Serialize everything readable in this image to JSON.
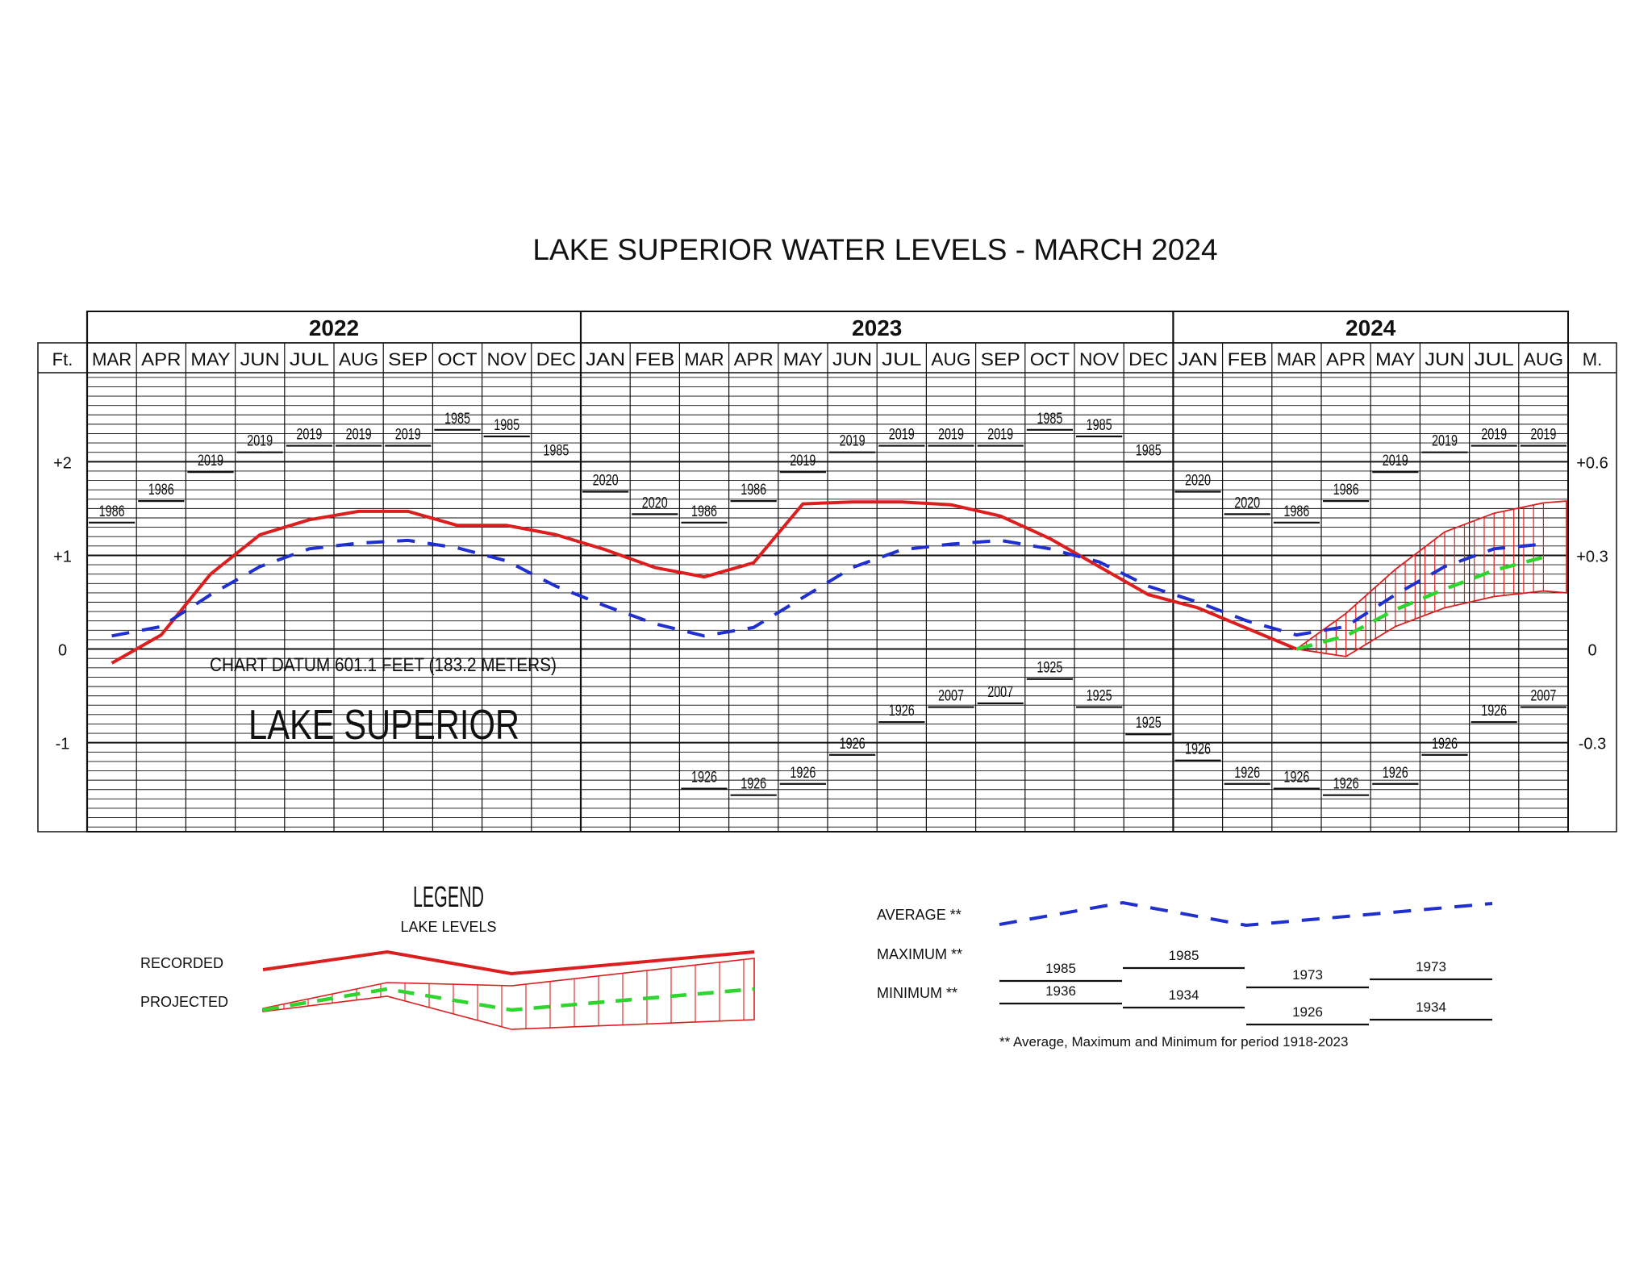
{
  "title": "LAKE SUPERIOR WATER LEVELS - MARCH 2024",
  "colors": {
    "recorded": "#dd1e1e",
    "average": "#1f2fd0",
    "projected": "#2fd52f",
    "projected_band": "#dd1e1e",
    "grid": "#111111"
  },
  "chart_data": {
    "type": "line",
    "title": "LAKE SUPERIOR WATER LEVELS - MARCH 2024",
    "left_axis_unit": "Ft.",
    "right_axis_unit": "M.",
    "y_ticks_ft": [
      {
        "value": 2,
        "label": "+2"
      },
      {
        "value": 1,
        "label": "+1"
      },
      {
        "value": 0,
        "label": "0"
      },
      {
        "value": -1,
        "label": "-1"
      }
    ],
    "y_ticks_m": [
      {
        "value": 2,
        "label": "+0.6"
      },
      {
        "value": 1,
        "label": "+0.3"
      },
      {
        "value": 0,
        "label": "0"
      },
      {
        "value": -1,
        "label": "-0.3"
      }
    ],
    "ylim": [
      -1.95,
      2.95
    ],
    "grid": true,
    "years": [
      {
        "label": "2022",
        "months": 10
      },
      {
        "label": "2023",
        "months": 12
      },
      {
        "label": "2024",
        "months": 8
      }
    ],
    "categories": [
      "MAR",
      "APR",
      "MAY",
      "JUN",
      "JUL",
      "AUG",
      "SEP",
      "OCT",
      "NOV",
      "DEC",
      "JAN",
      "FEB",
      "MAR",
      "APR",
      "MAY",
      "JUN",
      "JUL",
      "AUG",
      "SEP",
      "OCT",
      "NOV",
      "DEC",
      "JAN",
      "FEB",
      "MAR",
      "APR",
      "MAY",
      "JUN",
      "JUL",
      "AUG"
    ],
    "series": [
      {
        "name": "RECORDED",
        "style": "solid",
        "values": [
          -0.15,
          0.15,
          0.8,
          1.22,
          1.38,
          1.47,
          1.47,
          1.32,
          1.32,
          1.22,
          1.06,
          0.87,
          0.77,
          0.92,
          1.55,
          1.57,
          1.57,
          1.54,
          1.42,
          1.18,
          0.88,
          0.58,
          0.44,
          0.22,
          0.0,
          null,
          null,
          null,
          null,
          null
        ]
      },
      {
        "name": "AVERAGE",
        "style": "dashed",
        "values": [
          0.14,
          0.24,
          0.58,
          0.88,
          1.07,
          1.13,
          1.16,
          1.08,
          0.94,
          0.67,
          0.46,
          0.27,
          0.14,
          0.23,
          0.55,
          0.87,
          1.06,
          1.12,
          1.16,
          1.07,
          0.93,
          0.67,
          0.5,
          0.3,
          0.15,
          0.24,
          0.58,
          0.88,
          1.07,
          1.12
        ]
      },
      {
        "name": "PROJECTED",
        "style": "dashed",
        "values": [
          null,
          null,
          null,
          null,
          null,
          null,
          null,
          null,
          null,
          null,
          null,
          null,
          null,
          null,
          null,
          null,
          null,
          null,
          null,
          null,
          null,
          null,
          null,
          null,
          0.0,
          0.14,
          0.42,
          0.64,
          0.84,
          0.98
        ]
      }
    ],
    "projected_range": {
      "upper": [
        null,
        null,
        null,
        null,
        null,
        null,
        null,
        null,
        null,
        null,
        null,
        null,
        null,
        null,
        null,
        null,
        null,
        null,
        null,
        null,
        null,
        null,
        null,
        null,
        0.0,
        0.38,
        0.85,
        1.25,
        1.45,
        1.56
      ],
      "lower": [
        null,
        null,
        null,
        null,
        null,
        null,
        null,
        null,
        null,
        null,
        null,
        null,
        null,
        null,
        null,
        null,
        null,
        null,
        null,
        null,
        null,
        null,
        null,
        null,
        0.0,
        -0.08,
        0.24,
        0.44,
        0.56,
        0.62
      ]
    },
    "records_max": [
      {
        "year": "1986",
        "value": 1.35
      },
      {
        "year": "1986",
        "value": 1.58
      },
      {
        "year": "2019",
        "value": 1.89
      },
      {
        "year": "2019",
        "value": 2.1
      },
      {
        "year": "2019",
        "value": 2.17
      },
      {
        "year": "2019",
        "value": 2.17
      },
      {
        "year": "2019",
        "value": 2.17
      },
      {
        "year": "1985",
        "value": 2.34
      },
      {
        "year": "1985",
        "value": 2.27
      },
      {
        "year": "1985",
        "value": 2.0
      },
      {
        "year": "2020",
        "value": 1.68
      },
      {
        "year": "2020",
        "value": 1.44
      },
      {
        "year": "1986",
        "value": 1.35
      },
      {
        "year": "1986",
        "value": 1.58
      },
      {
        "year": "2019",
        "value": 1.89
      },
      {
        "year": "2019",
        "value": 2.1
      },
      {
        "year": "2019",
        "value": 2.17
      },
      {
        "year": "2019",
        "value": 2.17
      },
      {
        "year": "2019",
        "value": 2.17
      },
      {
        "year": "1985",
        "value": 2.34
      },
      {
        "year": "1985",
        "value": 2.27
      },
      {
        "year": "1985",
        "value": 2.0
      },
      {
        "year": "2020",
        "value": 1.68
      },
      {
        "year": "2020",
        "value": 1.44
      },
      {
        "year": "1986",
        "value": 1.35
      },
      {
        "year": "1986",
        "value": 1.58
      },
      {
        "year": "2019",
        "value": 1.89
      },
      {
        "year": "2019",
        "value": 2.1
      },
      {
        "year": "2019",
        "value": 2.17
      },
      {
        "year": "2019",
        "value": 2.17
      }
    ],
    "records_min": [
      null,
      null,
      null,
      null,
      null,
      null,
      null,
      null,
      null,
      null,
      null,
      null,
      {
        "year": "1926",
        "value": -1.49
      },
      {
        "year": "1926",
        "value": -1.56
      },
      {
        "year": "1926",
        "value": -1.44
      },
      {
        "year": "1926",
        "value": -1.13
      },
      {
        "year": "1926",
        "value": -0.78
      },
      {
        "year": "2007",
        "value": -0.62
      },
      {
        "year": "2007",
        "value": -0.58
      },
      {
        "year": "1925",
        "value": -0.32
      },
      {
        "year": "1925",
        "value": -0.62
      },
      {
        "year": "1925",
        "value": -0.91
      },
      {
        "year": "1926",
        "value": -1.19
      },
      {
        "year": "1926",
        "value": -1.44
      },
      {
        "year": "1926",
        "value": -1.49
      },
      {
        "year": "1926",
        "value": -1.56
      },
      {
        "year": "1926",
        "value": -1.44
      },
      {
        "year": "1926",
        "value": -1.13
      },
      {
        "year": "1926",
        "value": -0.78
      },
      {
        "year": "2007",
        "value": -0.62
      }
    ],
    "annotations": {
      "chart_datum": "CHART DATUM  601.1 FEET (183.2 METERS)",
      "lake_name": "LAKE SUPERIOR"
    }
  },
  "legend": {
    "title": "LEGEND",
    "subtitle": "LAKE LEVELS",
    "recorded_label": "RECORDED",
    "projected_label": "PROJECTED",
    "average_label": "AVERAGE **",
    "maximum_label": "MAXIMUM **",
    "minimum_label": "MINIMUM **",
    "max_years": [
      "1985",
      "1985",
      "1973",
      "1973"
    ],
    "min_years": [
      "1936",
      "1934",
      "1926",
      "1934"
    ],
    "footnote": "** Average, Maximum and Minimum for period 1918-2023"
  }
}
